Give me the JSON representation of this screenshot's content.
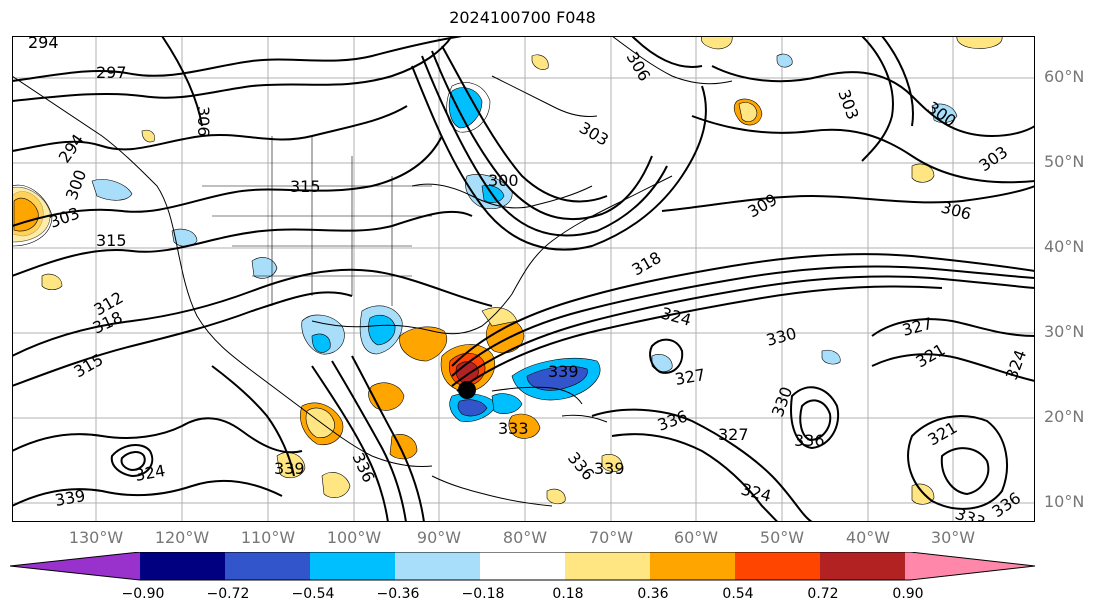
{
  "title": "2024100700 F048",
  "latitude_labels": [
    "60°N",
    "50°N",
    "40°N",
    "30°N",
    "20°N",
    "10°N"
  ],
  "longitude_labels": [
    "130°W",
    "120°W",
    "110°W",
    "100°W",
    "90°W",
    "80°W",
    "70°W",
    "60°W",
    "50°W",
    "40°W",
    "30°W"
  ],
  "colorbar": {
    "ticks": [
      "−0.90",
      "−0.72",
      "−0.54",
      "−0.36",
      "−0.18",
      "0.18",
      "0.36",
      "0.54",
      "0.72",
      "0.90"
    ],
    "colors": [
      "#9932cc",
      "#000080",
      "#3355cc",
      "#00bfff",
      "#a8defa",
      "#ffffff",
      "#ffe682",
      "#ffa500",
      "#ff4500",
      "#b22222",
      "#ff88aa"
    ]
  },
  "contour_labels": [
    "294",
    "297",
    "306",
    "294",
    "300",
    "303",
    "315",
    "315",
    "312",
    "318",
    "315",
    "300",
    "303",
    "318",
    "324",
    "330",
    "327",
    "321",
    "324",
    "309",
    "306",
    "303",
    "300",
    "306",
    "303",
    "339",
    "333",
    "336",
    "339",
    "330",
    "336",
    "327",
    "324",
    "333",
    "336",
    "321",
    "324",
    "339",
    "336",
    "339",
    "336",
    "327"
  ],
  "map_features": {
    "coastline_color": "#000000",
    "gridline_color": "#b0b0b0",
    "contour_color": "#000000"
  }
}
